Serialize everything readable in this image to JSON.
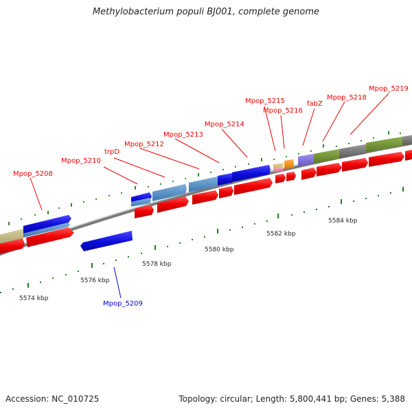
{
  "title": "Methylobacterium populi BJ001, complete genome",
  "footer": {
    "accession": "Accession: NC_010725",
    "summary": "Topology: circular; Length: 5,800,441 bp; Genes: 5,388"
  },
  "ticks": [
    {
      "label": "5574 kbp"
    },
    {
      "label": "5576 kbp"
    },
    {
      "label": "5578 kbp"
    },
    {
      "label": "5580 kbp"
    },
    {
      "label": "5582 kbp"
    },
    {
      "label": "5584 kbp"
    }
  ],
  "gene_labels": [
    {
      "label": "Mpop_5208",
      "color": "#ee0000"
    },
    {
      "label": "Mpop_5209",
      "color": "#0000cc"
    },
    {
      "label": "Mpop_5210",
      "color": "#ee0000"
    },
    {
      "label": "trpD",
      "color": "#ee0000"
    },
    {
      "label": "Mpop_5212",
      "color": "#ee0000"
    },
    {
      "label": "Mpop_5213",
      "color": "#ee0000"
    },
    {
      "label": "Mpop_5214",
      "color": "#ee0000"
    },
    {
      "label": "Mpop_5215",
      "color": "#ee0000"
    },
    {
      "label": "Mpop_5216",
      "color": "#ee0000"
    },
    {
      "label": "fabZ",
      "color": "#ee0000"
    },
    {
      "label": "Mpop_5218",
      "color": "#ee0000"
    },
    {
      "label": "Mpop_5219",
      "color": "#ee0000"
    }
  ],
  "colors": {
    "backbone": "#808080",
    "forward_cds": "#ee0000",
    "reverse_cds": "#1010dd",
    "tick_major": "#006600",
    "tick_minor": "#338833"
  }
}
